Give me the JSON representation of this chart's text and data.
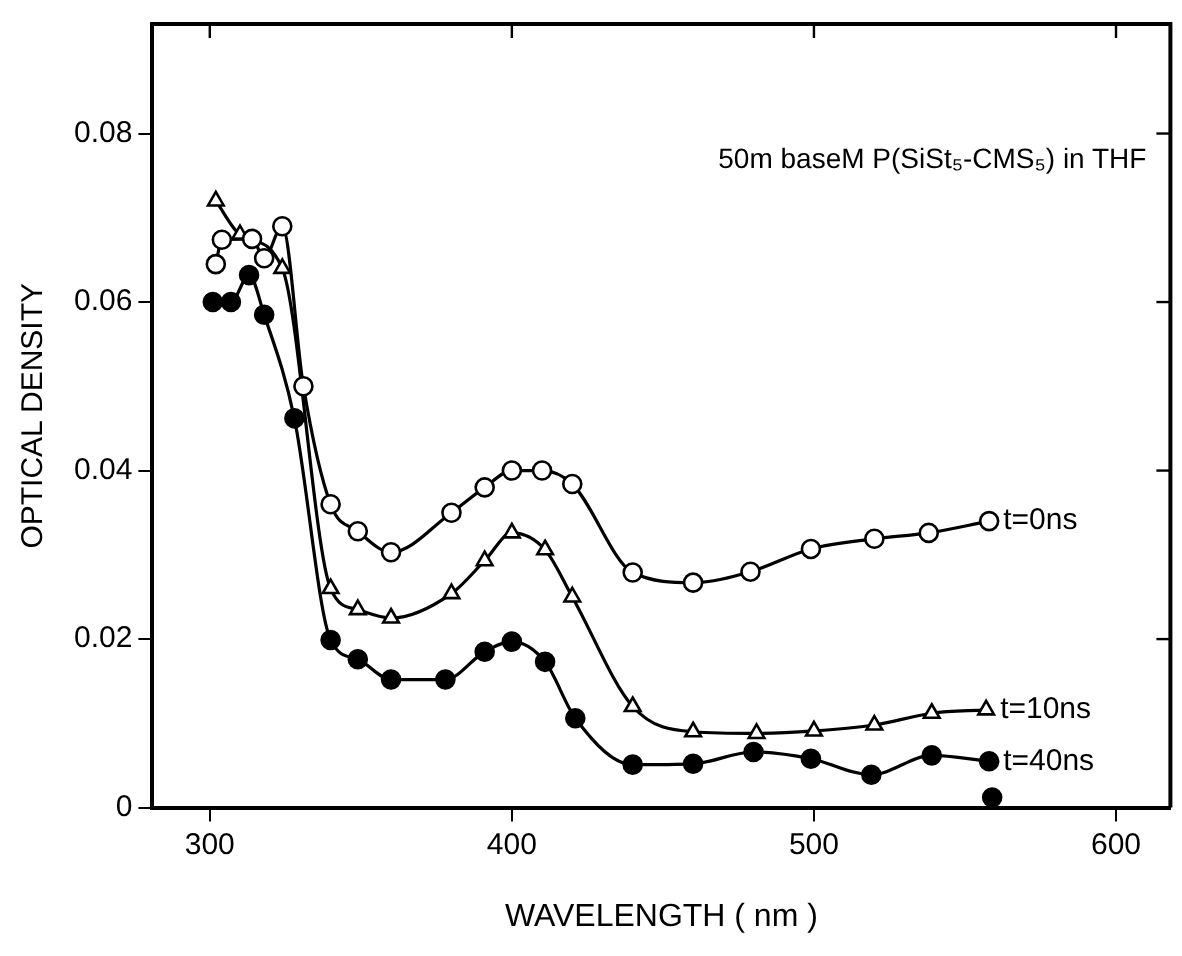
{
  "chart_data": {
    "type": "line",
    "xlabel": "WAVELENGTH ( nm )",
    "ylabel": "OPTICAL DENSITY",
    "annotations": [
      "50m baseM P(SiSt₅-CMS₅) in THF"
    ],
    "xlim": [
      281,
      618
    ],
    "xticks": [
      300,
      400,
      500,
      600
    ],
    "ylim": [
      0,
      0.093
    ],
    "yticks": [
      0,
      0.02,
      0.04,
      0.06,
      0.08
    ],
    "legend": false,
    "line_style": "solid",
    "series": [
      {
        "name": "t=0ns",
        "color": "#000000",
        "marker": "circle",
        "x": [
          302,
          304,
          314,
          318,
          324,
          331,
          340,
          349,
          360,
          380,
          391,
          400,
          410,
          420,
          440,
          460,
          479,
          499,
          520,
          538,
          558
        ],
        "values": [
          0.0645,
          0.0674,
          0.0675,
          0.0652,
          0.069,
          0.05,
          0.036,
          0.0328,
          0.0303,
          0.035,
          0.038,
          0.04,
          0.04,
          0.0384,
          0.0279,
          0.0267,
          0.028,
          0.0307,
          0.0319,
          0.0326,
          0.034
        ]
      },
      {
        "name": "t=10ns",
        "color": "#000000",
        "marker": "triangle",
        "x": [
          302,
          310,
          316,
          324,
          340,
          349,
          360,
          380,
          391,
          400,
          411,
          420,
          440,
          460,
          481,
          500,
          520,
          539,
          557
        ],
        "values": [
          0.072,
          0.068,
          null,
          0.064,
          0.026,
          0.0235,
          0.0225,
          0.0254,
          0.0293,
          0.0326,
          0.0306,
          0.025,
          0.012,
          0.009,
          0.0088,
          0.0091,
          0.0098,
          0.0112,
          0.0116
        ]
      },
      {
        "name": "t=40ns",
        "color": "#000000",
        "marker": "circle",
        "x": [
          301,
          307,
          313,
          318,
          324,
          328,
          340,
          349,
          360,
          378,
          391,
          400,
          411,
          421,
          440,
          460,
          480,
          499,
          519,
          539,
          558
        ],
        "values": [
          0.06,
          0.06,
          0.0632,
          0.0585,
          null,
          0.0462,
          0.0199,
          0.0176,
          0.0152,
          0.0152,
          0.0185,
          0.0197,
          0.0173,
          0.0106,
          0.0051,
          0.0052,
          0.0066,
          0.0058,
          0.0039,
          0.0062,
          0.0055
        ]
      },
      {
        "type": "scatter",
        "color": "#000000",
        "marker": "circle",
        "x": [
          559
        ],
        "values": [
          0.0012
        ]
      }
    ]
  }
}
